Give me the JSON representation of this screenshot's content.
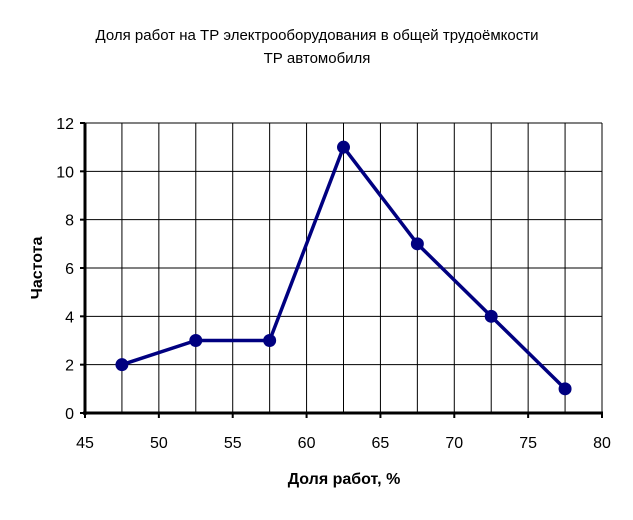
{
  "chart_data": {
    "type": "line",
    "title": [
      "Доля работ на ТР электрооборудования в общей трудоёмкости",
      "ТР автомобиля"
    ],
    "xlabel": "Доля работ, %",
    "ylabel": "Частота",
    "xlim": [
      45,
      80
    ],
    "ylim": [
      0,
      12
    ],
    "x_ticks": [
      45,
      50,
      55,
      60,
      65,
      70,
      75,
      80
    ],
    "y_ticks": [
      0,
      2,
      4,
      6,
      8,
      10,
      12
    ],
    "grid": true,
    "legend": "none",
    "color": "#000080",
    "series": [
      {
        "x": [
          47.5,
          52.5,
          57.5,
          62.5,
          67.5,
          72.5,
          77.5
        ],
        "y": [
          2,
          3,
          3,
          11,
          7,
          4,
          1
        ]
      }
    ]
  }
}
